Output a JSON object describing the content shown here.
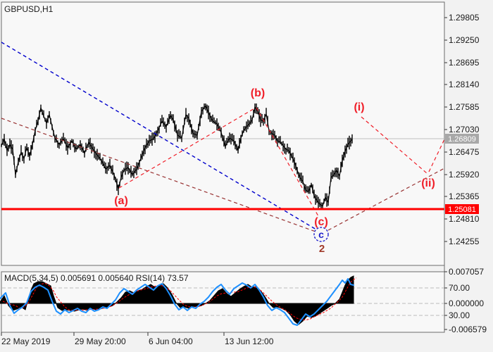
{
  "window": {
    "symbol_label": "GBPUSD,H1",
    "indicator_label": "MACD(5,34,5) 0.005691 0.005640 RSI(14) 73.57"
  },
  "colors": {
    "background": "#f2f2f2",
    "panel": "#f8f8f8",
    "candles": "#000000",
    "support_line": "#ff0000",
    "current_price_line": "#c0c0c0",
    "current_badge_bg": "#a8a8a8",
    "level_badge_bg": "#ff0000",
    "wave_red": "#f01e28",
    "trend_maroon": "#993333",
    "trend_blue": "#0000cc",
    "macd_black": "#000000",
    "signal_red": "#ff0000",
    "rsi_blue": "#1e90ff"
  },
  "price_axis": {
    "ticks": [
      {
        "label": "1.29805"
      },
      {
        "label": "1.29250"
      },
      {
        "label": "1.28695"
      },
      {
        "label": "1.28140"
      },
      {
        "label": "1.27585"
      },
      {
        "label": "1.27030"
      },
      {
        "label": "1.26475"
      },
      {
        "label": "1.25920"
      },
      {
        "label": "1.25365"
      },
      {
        "label": "1.24810"
      },
      {
        "label": "1.24255"
      }
    ],
    "current_badge": {
      "label": "1.26809"
    },
    "level_badge": {
      "label": "1.25081"
    }
  },
  "indicator_axis": {
    "ticks": [
      {
        "label": "0.007057"
      },
      {
        "label": "70.00"
      },
      {
        "label": "0.000000"
      },
      {
        "label": "30.00"
      },
      {
        "label": "-0.006579"
      }
    ]
  },
  "time_axis": {
    "ticks": [
      {
        "label": "22 May 2019"
      },
      {
        "label": "29 May 20:00"
      },
      {
        "label": "6 Jun 04:00"
      },
      {
        "label": "13 Jun 12:00"
      }
    ]
  },
  "annotations": {
    "labels": [
      {
        "text": "(a)"
      },
      {
        "text": "(b)"
      },
      {
        "text": "(c)"
      },
      {
        "text": "c"
      },
      {
        "text": "2"
      },
      {
        "text": "(i)"
      },
      {
        "text": "(ii)"
      }
    ]
  },
  "chart_data": {
    "type": "candlestick",
    "symbol": "GBPUSD",
    "timeframe": "H1",
    "title": "GBPUSD,H1",
    "price_axis_ticks": [
      1.29805,
      1.2925,
      1.28695,
      1.2814,
      1.27585,
      1.2703,
      1.26475,
      1.2592,
      1.25365,
      1.2481,
      1.24255
    ],
    "time_ticks": [
      "22 May 2019",
      "29 May 20:00",
      "6 Jun 04:00",
      "13 Jun 12:00"
    ],
    "current_price": 1.26809,
    "support_level": 1.25081,
    "grid": false,
    "legend_position": "none",
    "wave_points": [
      {
        "label": "(a)",
        "price": 1.2556
      },
      {
        "label": "(b)",
        "price": 1.2759
      },
      {
        "label": "(c)",
        "price": 1.2509
      },
      {
        "label": "c",
        "price": 1.2505
      },
      {
        "label": "2",
        "price": 1.2505
      },
      {
        "label": "(i)",
        "price": 1.274,
        "projected": true
      },
      {
        "label": "(ii)",
        "price": 1.2593,
        "projected": true
      }
    ],
    "price_path": [
      [
        2,
        1.2663
      ],
      [
        6,
        1.268
      ],
      [
        10,
        1.2651
      ],
      [
        14,
        1.2666
      ],
      [
        18,
        1.2654
      ],
      [
        22,
        1.2591
      ],
      [
        26,
        1.2623
      ],
      [
        30,
        1.2647
      ],
      [
        34,
        1.2631
      ],
      [
        38,
        1.2658
      ],
      [
        42,
        1.2637
      ],
      [
        46,
        1.2666
      ],
      [
        50,
        1.2701
      ],
      [
        54,
        1.2724
      ],
      [
        58,
        1.2757
      ],
      [
        62,
        1.2736
      ],
      [
        66,
        1.2719
      ],
      [
        70,
        1.274
      ],
      [
        74,
        1.271
      ],
      [
        78,
        1.2682
      ],
      [
        84,
        1.2666
      ],
      [
        90,
        1.268
      ],
      [
        96,
        1.2658
      ],
      [
        102,
        1.2675
      ],
      [
        108,
        1.2654
      ],
      [
        114,
        1.2666
      ],
      [
        120,
        1.2644
      ],
      [
        126,
        1.2672
      ],
      [
        132,
        1.2654
      ],
      [
        138,
        1.264
      ],
      [
        144,
        1.2626
      ],
      [
        150,
        1.2605
      ],
      [
        156,
        1.2614
      ],
      [
        162,
        1.2591
      ],
      [
        168,
        1.2556
      ],
      [
        172,
        1.2584
      ],
      [
        176,
        1.2602
      ],
      [
        182,
        1.2609
      ],
      [
        188,
        1.2591
      ],
      [
        194,
        1.2605
      ],
      [
        200,
        1.2631
      ],
      [
        206,
        1.2658
      ],
      [
        212,
        1.2675
      ],
      [
        218,
        1.268
      ],
      [
        224,
        1.27
      ],
      [
        230,
        1.2724
      ],
      [
        236,
        1.271
      ],
      [
        242,
        1.2738
      ],
      [
        246,
        1.2727
      ],
      [
        252,
        1.2689
      ],
      [
        258,
        1.2682
      ],
      [
        264,
        1.274
      ],
      [
        268,
        1.2731
      ],
      [
        274,
        1.2693
      ],
      [
        280,
        1.2689
      ],
      [
        286,
        1.2748
      ],
      [
        292,
        1.2762
      ],
      [
        296,
        1.2745
      ],
      [
        302,
        1.2724
      ],
      [
        308,
        1.2717
      ],
      [
        314,
        1.2696
      ],
      [
        320,
        1.2661
      ],
      [
        326,
        1.2682
      ],
      [
        332,
        1.2675
      ],
      [
        338,
        1.2651
      ],
      [
        342,
        1.2682
      ],
      [
        346,
        1.27
      ],
      [
        350,
        1.271
      ],
      [
        354,
        1.2717
      ],
      [
        358,
        1.2727
      ],
      [
        362,
        1.2759
      ],
      [
        366,
        1.2748
      ],
      [
        370,
        1.2727
      ],
      [
        374,
        1.2724
      ],
      [
        378,
        1.2741
      ],
      [
        382,
        1.27
      ],
      [
        386,
        1.2693
      ],
      [
        390,
        1.2689
      ],
      [
        394,
        1.2675
      ],
      [
        398,
        1.2672
      ],
      [
        402,
        1.2663
      ],
      [
        406,
        1.2654
      ],
      [
        410,
        1.2651
      ],
      [
        414,
        1.2637
      ],
      [
        418,
        1.2623
      ],
      [
        422,
        1.2602
      ],
      [
        426,
        1.2584
      ],
      [
        430,
        1.2574
      ],
      [
        434,
        1.2553
      ],
      [
        438,
        1.2549
      ],
      [
        442,
        1.2567
      ],
      [
        446,
        1.2539
      ],
      [
        450,
        1.2527
      ],
      [
        454,
        1.2518
      ],
      [
        458,
        1.2513
      ],
      [
        462,
        1.2535
      ],
      [
        466,
        1.2522
      ],
      [
        470,
        1.2584
      ],
      [
        474,
        1.2591
      ],
      [
        478,
        1.2602
      ],
      [
        482,
        1.2588
      ],
      [
        486,
        1.2626
      ],
      [
        490,
        1.2649
      ],
      [
        494,
        1.2666
      ],
      [
        498,
        1.2675
      ],
      [
        500,
        1.2679
      ]
    ],
    "indicator": {
      "name": "MACD(5,34,5)",
      "macd_value": 0.005691,
      "signal_value": 0.00564,
      "rsi_name": "RSI(14)",
      "rsi_value": 73.57,
      "levels": [
        70,
        30,
        0
      ],
      "axis_range": [
        -0.006579,
        0.007057
      ],
      "macd_path": [
        [
          0,
          0.00031
        ],
        [
          6,
          0.00169
        ],
        [
          12,
          -0.00046
        ],
        [
          18,
          -0.00153
        ],
        [
          24,
          -0.00123
        ],
        [
          30,
          -0.00077
        ],
        [
          36,
          -0.00138
        ],
        [
          40,
          0.00092
        ],
        [
          44,
          0.00291
        ],
        [
          48,
          0.0043
        ],
        [
          54,
          0.00476
        ],
        [
          60,
          0.00476
        ],
        [
          66,
          0.0043
        ],
        [
          72,
          0.00384
        ],
        [
          76,
          0.00169
        ],
        [
          82,
          -0.00092
        ],
        [
          88,
          -0.00153
        ],
        [
          94,
          -0.00138
        ],
        [
          100,
          -0.00153
        ],
        [
          106,
          -0.00169
        ],
        [
          112,
          -0.00138
        ],
        [
          118,
          -0.00123
        ],
        [
          124,
          -0.00153
        ],
        [
          130,
          -0.00107
        ],
        [
          136,
          -0.00138
        ],
        [
          142,
          -0.00123
        ],
        [
          148,
          -0.00092
        ],
        [
          154,
          -0.00077
        ],
        [
          160,
          -0.00046
        ],
        [
          166,
          0.00031
        ],
        [
          172,
          0.00123
        ],
        [
          178,
          0.00245
        ],
        [
          184,
          0.00276
        ],
        [
          190,
          0.0023
        ],
        [
          196,
          0.00276
        ],
        [
          202,
          0.00307
        ],
        [
          208,
          0.00368
        ],
        [
          214,
          0.00414
        ],
        [
          220,
          0.00353
        ],
        [
          226,
          0.00399
        ],
        [
          232,
          0.0043
        ],
        [
          238,
          0.00337
        ],
        [
          244,
          0.00199
        ],
        [
          250,
          0.00015
        ],
        [
          256,
          -0.00092
        ],
        [
          262,
          -0.00077
        ],
        [
          268,
          -0.00107
        ],
        [
          274,
          -0.00061
        ],
        [
          280,
          -0.00077
        ],
        [
          286,
          -0.00046
        ],
        [
          292,
          0.0
        ],
        [
          298,
          0.00061
        ],
        [
          304,
          0.00169
        ],
        [
          310,
          0.00276
        ],
        [
          316,
          0.00322
        ],
        [
          322,
          0.00215
        ],
        [
          328,
          0.00153
        ],
        [
          334,
          0.0023
        ],
        [
          340,
          0.00307
        ],
        [
          346,
          0.00368
        ],
        [
          352,
          0.00414
        ],
        [
          358,
          0.00353
        ],
        [
          364,
          0.00368
        ],
        [
          370,
          0.00276
        ],
        [
          376,
          0.00153
        ],
        [
          382,
          0.0
        ],
        [
          388,
          -0.00092
        ],
        [
          394,
          -0.00077
        ],
        [
          400,
          -0.00107
        ],
        [
          406,
          -0.00153
        ],
        [
          412,
          -0.00245
        ],
        [
          418,
          -0.00384
        ],
        [
          424,
          -0.0046
        ],
        [
          430,
          -0.00384
        ],
        [
          436,
          -0.00276
        ],
        [
          442,
          -0.00307
        ],
        [
          448,
          -0.00276
        ],
        [
          454,
          -0.00215
        ],
        [
          460,
          -0.00153
        ],
        [
          466,
          -0.00092
        ],
        [
          470,
          -0.00046
        ],
        [
          476,
          0.0
        ],
        [
          482,
          0.00092
        ],
        [
          486,
          0.00245
        ],
        [
          490,
          0.00399
        ],
        [
          494,
          0.00506
        ],
        [
          498,
          0.00568
        ],
        [
          502,
          0.00598
        ]
      ],
      "rsi_path": [
        [
          0,
          54.6
        ],
        [
          8,
          62.8
        ],
        [
          14,
          44.4
        ],
        [
          20,
          33.1
        ],
        [
          26,
          38.2
        ],
        [
          32,
          42.3
        ],
        [
          38,
          48.5
        ],
        [
          44,
          64.9
        ],
        [
          50,
          71.0
        ],
        [
          56,
          74.1
        ],
        [
          62,
          71.0
        ],
        [
          68,
          66.9
        ],
        [
          74,
          50.5
        ],
        [
          80,
          36.2
        ],
        [
          86,
          32.1
        ],
        [
          92,
          38.2
        ],
        [
          98,
          34.1
        ],
        [
          104,
          37.2
        ],
        [
          110,
          40.3
        ],
        [
          116,
          36.2
        ],
        [
          122,
          34.1
        ],
        [
          128,
          40.3
        ],
        [
          134,
          36.2
        ],
        [
          140,
          38.2
        ],
        [
          146,
          42.3
        ],
        [
          152,
          40.3
        ],
        [
          158,
          46.4
        ],
        [
          164,
          52.6
        ],
        [
          170,
          62.8
        ],
        [
          176,
          69.0
        ],
        [
          182,
          64.9
        ],
        [
          188,
          60.8
        ],
        [
          194,
          66.9
        ],
        [
          200,
          71.0
        ],
        [
          206,
          75.1
        ],
        [
          212,
          71.0
        ],
        [
          218,
          66.9
        ],
        [
          224,
          73.1
        ],
        [
          230,
          76.2
        ],
        [
          236,
          69.0
        ],
        [
          242,
          58.7
        ],
        [
          248,
          46.4
        ],
        [
          254,
          38.2
        ],
        [
          260,
          42.3
        ],
        [
          266,
          37.2
        ],
        [
          272,
          42.3
        ],
        [
          278,
          40.3
        ],
        [
          284,
          46.4
        ],
        [
          290,
          50.5
        ],
        [
          296,
          56.7
        ],
        [
          302,
          64.9
        ],
        [
          308,
          71.0
        ],
        [
          314,
          75.1
        ],
        [
          320,
          66.9
        ],
        [
          326,
          60.8
        ],
        [
          332,
          69.0
        ],
        [
          338,
          73.1
        ],
        [
          344,
          77.2
        ],
        [
          350,
          74.1
        ],
        [
          356,
          70.0
        ],
        [
          362,
          75.1
        ],
        [
          368,
          66.9
        ],
        [
          374,
          56.7
        ],
        [
          380,
          44.4
        ],
        [
          386,
          37.2
        ],
        [
          392,
          41.3
        ],
        [
          398,
          38.2
        ],
        [
          404,
          34.1
        ],
        [
          410,
          25.9
        ],
        [
          416,
          17.7
        ],
        [
          422,
          15.6
        ],
        [
          428,
          23.8
        ],
        [
          434,
          32.1
        ],
        [
          440,
          28.0
        ],
        [
          446,
          32.1
        ],
        [
          452,
          38.2
        ],
        [
          458,
          44.4
        ],
        [
          464,
          50.5
        ],
        [
          470,
          58.7
        ],
        [
          476,
          66.9
        ],
        [
          482,
          75.1
        ],
        [
          486,
          81.3
        ],
        [
          490,
          77.2
        ],
        [
          494,
          83.3
        ],
        [
          498,
          75.1
        ],
        [
          502,
          74.1
        ]
      ]
    }
  }
}
